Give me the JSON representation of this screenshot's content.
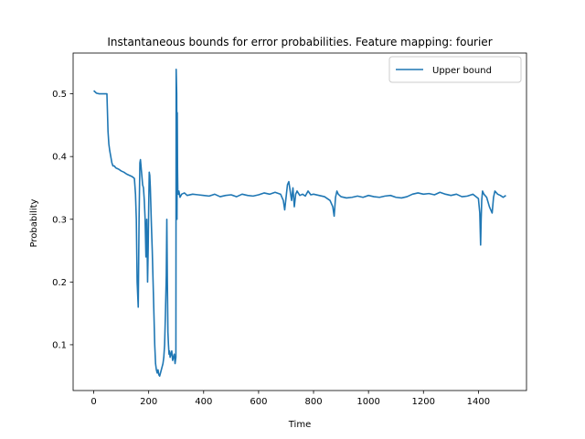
{
  "chart_data": {
    "type": "line",
    "title": "Instantaneous bounds for error probabilities. Feature mapping: fourier",
    "xlabel": "Time",
    "ylabel": "Probability",
    "xlim": [
      -75,
      1575
    ],
    "ylim": [
      0.027,
      0.565
    ],
    "xticks": [
      0,
      200,
      400,
      600,
      800,
      1000,
      1200,
      1400
    ],
    "yticks": [
      0.1,
      0.2,
      0.3,
      0.4,
      0.5
    ],
    "grid": false,
    "legend_position": "top-right",
    "color": "#1f77b4",
    "series": [
      {
        "name": "Upper bound",
        "x": [
          0,
          10,
          20,
          30,
          40,
          48,
          50,
          52,
          55,
          58,
          62,
          66,
          70,
          75,
          80,
          90,
          100,
          110,
          120,
          130,
          140,
          148,
          152,
          155,
          158,
          162,
          165,
          168,
          170,
          172,
          175,
          178,
          181,
          184,
          187,
          190,
          193,
          196,
          198,
          200,
          202,
          204,
          206,
          208,
          210,
          213,
          216,
          219,
          222,
          225,
          228,
          231,
          234,
          237,
          240,
          243,
          246,
          249,
          252,
          255,
          258,
          261,
          264,
          266,
          268,
          270,
          272,
          274,
          276,
          278,
          281,
          284,
          287,
          290,
          293,
          296,
          299,
          300,
          302,
          303,
          304,
          305,
          306,
          308,
          310,
          314,
          320,
          330,
          340,
          360,
          380,
          400,
          420,
          440,
          460,
          480,
          500,
          520,
          540,
          560,
          580,
          600,
          620,
          640,
          660,
          680,
          690,
          695,
          700,
          705,
          710,
          715,
          720,
          725,
          730,
          735,
          740,
          750,
          760,
          770,
          780,
          790,
          800,
          820,
          840,
          860,
          870,
          875,
          880,
          885,
          890,
          900,
          920,
          940,
          960,
          980,
          1000,
          1020,
          1040,
          1060,
          1080,
          1100,
          1120,
          1140,
          1160,
          1180,
          1200,
          1220,
          1240,
          1260,
          1280,
          1300,
          1320,
          1340,
          1360,
          1380,
          1400,
          1405,
          1408,
          1410,
          1412,
          1415,
          1420,
          1430,
          1440,
          1450,
          1455,
          1460,
          1470,
          1480,
          1490,
          1500
        ],
        "y": [
          0.505,
          0.501,
          0.5,
          0.5,
          0.5,
          0.5,
          0.47,
          0.44,
          0.42,
          0.41,
          0.4,
          0.39,
          0.385,
          0.385,
          0.382,
          0.38,
          0.377,
          0.375,
          0.372,
          0.37,
          0.368,
          0.365,
          0.34,
          0.3,
          0.2,
          0.16,
          0.3,
          0.39,
          0.395,
          0.385,
          0.37,
          0.355,
          0.35,
          0.33,
          0.3,
          0.24,
          0.3,
          0.2,
          0.25,
          0.32,
          0.375,
          0.37,
          0.35,
          0.32,
          0.29,
          0.25,
          0.2,
          0.15,
          0.1,
          0.07,
          0.06,
          0.055,
          0.06,
          0.052,
          0.05,
          0.055,
          0.06,
          0.065,
          0.07,
          0.08,
          0.1,
          0.15,
          0.21,
          0.3,
          0.2,
          0.12,
          0.1,
          0.085,
          0.09,
          0.08,
          0.085,
          0.09,
          0.075,
          0.08,
          0.085,
          0.07,
          0.08,
          0.539,
          0.5,
          0.3,
          0.47,
          0.38,
          0.345,
          0.34,
          0.345,
          0.335,
          0.34,
          0.342,
          0.338,
          0.34,
          0.339,
          0.338,
          0.337,
          0.34,
          0.336,
          0.338,
          0.339,
          0.336,
          0.34,
          0.338,
          0.337,
          0.339,
          0.342,
          0.34,
          0.343,
          0.34,
          0.33,
          0.315,
          0.335,
          0.355,
          0.36,
          0.345,
          0.33,
          0.35,
          0.32,
          0.34,
          0.345,
          0.338,
          0.34,
          0.337,
          0.345,
          0.339,
          0.34,
          0.338,
          0.336,
          0.33,
          0.32,
          0.305,
          0.335,
          0.345,
          0.34,
          0.336,
          0.334,
          0.335,
          0.337,
          0.335,
          0.338,
          0.336,
          0.335,
          0.337,
          0.338,
          0.335,
          0.334,
          0.336,
          0.34,
          0.342,
          0.34,
          0.341,
          0.339,
          0.343,
          0.34,
          0.338,
          0.34,
          0.336,
          0.337,
          0.34,
          0.333,
          0.31,
          0.259,
          0.3,
          0.33,
          0.345,
          0.34,
          0.335,
          0.32,
          0.31,
          0.335,
          0.345,
          0.34,
          0.338,
          0.335,
          0.338
        ]
      }
    ]
  }
}
